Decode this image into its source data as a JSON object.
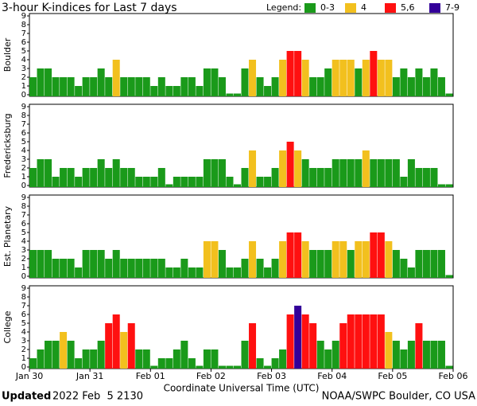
{
  "header": {
    "title": "3-hour K-indices for Last 7 days",
    "legend_title": "Legend:",
    "legend": [
      {
        "label": "0-3",
        "color": "#1a9a1a"
      },
      {
        "label": "4",
        "color": "#f2c01e"
      },
      {
        "label": "5,6",
        "color": "#ff1010"
      },
      {
        "label": "7-9",
        "color": "#330099"
      }
    ]
  },
  "chart_data": [
    {
      "type": "bar",
      "ylabel": "Boulder",
      "xlim": [
        0,
        56
      ],
      "ylim": [
        0,
        9
      ],
      "yticks": [
        0,
        1,
        2,
        3,
        4,
        5,
        6,
        7,
        8,
        9
      ],
      "values": [
        2,
        3,
        3,
        2,
        2,
        2,
        1,
        2,
        2,
        3,
        2,
        4,
        2,
        2,
        2,
        2,
        1,
        2,
        1,
        1,
        2,
        2,
        1,
        3,
        3,
        2,
        0,
        0,
        3,
        4,
        2,
        1,
        2,
        4,
        5,
        5,
        4,
        2,
        2,
        3,
        4,
        4,
        4,
        3,
        4,
        5,
        4,
        4,
        2,
        3,
        2,
        3,
        2,
        3,
        2,
        0
      ]
    },
    {
      "type": "bar",
      "ylabel": "Fredericksburg",
      "xlim": [
        0,
        56
      ],
      "ylim": [
        0,
        9
      ],
      "yticks": [
        0,
        1,
        2,
        3,
        4,
        5,
        6,
        7,
        8,
        9
      ],
      "values": [
        2,
        3,
        3,
        1,
        2,
        2,
        1,
        2,
        2,
        3,
        2,
        3,
        2,
        2,
        1,
        1,
        1,
        2,
        0,
        1,
        1,
        1,
        1,
        3,
        3,
        3,
        1,
        0,
        2,
        4,
        1,
        1,
        2,
        4,
        5,
        4,
        3,
        2,
        2,
        2,
        3,
        3,
        3,
        3,
        4,
        3,
        3,
        3,
        3,
        1,
        3,
        2,
        2,
        2,
        0,
        0
      ]
    },
    {
      "type": "bar",
      "ylabel": "Est. Planetary",
      "xlim": [
        0,
        56
      ],
      "ylim": [
        0,
        9
      ],
      "yticks": [
        0,
        1,
        2,
        3,
        4,
        5,
        6,
        7,
        8,
        9
      ],
      "values": [
        3,
        3,
        3,
        2,
        2,
        2,
        1,
        3,
        3,
        3,
        2,
        3,
        2,
        2,
        2,
        2,
        2,
        2,
        1,
        1,
        2,
        1,
        1,
        4,
        4,
        3,
        1,
        1,
        2,
        4,
        2,
        1,
        2,
        4,
        5,
        5,
        4,
        3,
        3,
        3,
        4,
        4,
        3,
        4,
        4,
        5,
        5,
        4,
        3,
        2,
        1,
        3,
        3,
        3,
        3,
        0
      ]
    },
    {
      "type": "bar",
      "ylabel": "College",
      "xlabel": "Coordinate Universal Time (UTC)",
      "xlim": [
        0,
        56
      ],
      "ylim": [
        0,
        9
      ],
      "yticks": [
        0,
        1,
        2,
        3,
        4,
        5,
        6,
        7,
        8,
        9
      ],
      "xticks": [
        {
          "value": 0,
          "label": "Jan 30"
        },
        {
          "value": 8,
          "label": "Jan 31"
        },
        {
          "value": 16,
          "label": "Feb 01"
        },
        {
          "value": 24,
          "label": "Feb 02"
        },
        {
          "value": 32,
          "label": "Feb 03"
        },
        {
          "value": 40,
          "label": "Feb 04"
        },
        {
          "value": 48,
          "label": "Feb 05"
        },
        {
          "value": 56,
          "label": "Feb 06"
        }
      ],
      "values": [
        1,
        2,
        3,
        3,
        4,
        3,
        1,
        2,
        2,
        3,
        5,
        6,
        4,
        5,
        2,
        2,
        0,
        1,
        1,
        2,
        3,
        1,
        0,
        2,
        2,
        0,
        0,
        0,
        3,
        5,
        1,
        0,
        1,
        2,
        6,
        7,
        6,
        5,
        3,
        2,
        3,
        5,
        6,
        6,
        6,
        6,
        6,
        4,
        3,
        2,
        3,
        5,
        3,
        3,
        3,
        0
      ]
    }
  ],
  "footer": {
    "updated": "Updated",
    "date": "2022 Feb  5 2130",
    "source": "NOAA/SWPC Boulder, CO USA"
  }
}
